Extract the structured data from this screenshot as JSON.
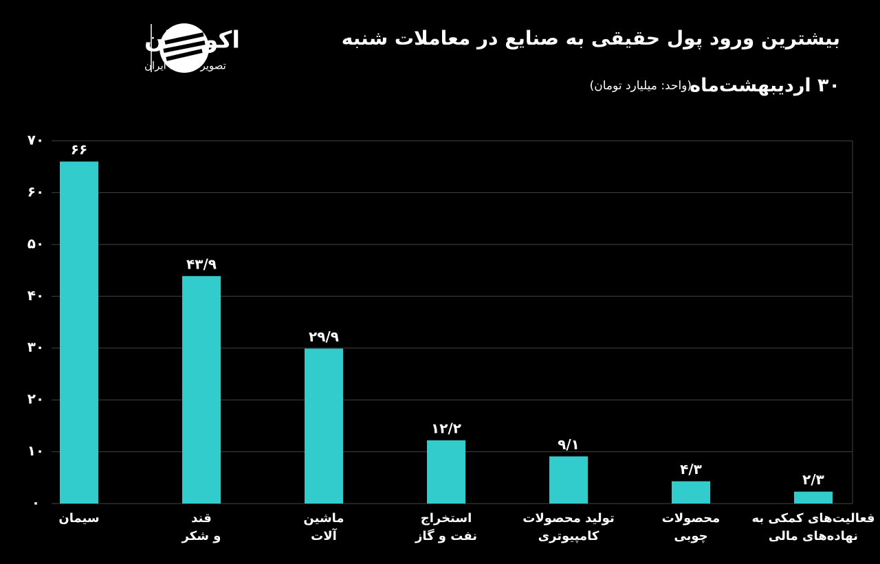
{
  "chart_data": {
    "type": "bar",
    "title": "بیشترین ورود پول حقیقی به صنایع در معاملات شنبه",
    "subtitle": "۳۰ اردیبهشت‌ماه",
    "unit": "(واحد: میلیارد تومان)",
    "logo": {
      "name": "اکوایران",
      "tagline": "تصویر اقتصاد ایران"
    },
    "categories": [
      "سیمان",
      "قند\nو شکر",
      "ماشین\nآلات",
      "استخراج\nنفت و گاز",
      "تولید محصولات\nکامپیوتری",
      "محصولات\nچوبی",
      "فعالیت‌های کمکی به\nنهاده‌های مالی"
    ],
    "values": [
      66,
      43.9,
      29.9,
      12.2,
      9.1,
      4.3,
      2.3
    ],
    "value_labels": [
      "۶۶",
      "۴۳/۹",
      "۲۹/۹",
      "۱۲/۲",
      "۹/۱",
      "۴/۳",
      "۲/۳"
    ],
    "color": "#33cccc",
    "ylim": [
      0,
      70
    ],
    "yticks": [
      {
        "value": 0,
        "label": "۰"
      },
      {
        "value": 10,
        "label": "۱۰"
      },
      {
        "value": 20,
        "label": "۲۰"
      },
      {
        "value": 30,
        "label": "۳۰"
      },
      {
        "value": 40,
        "label": "۴۰"
      },
      {
        "value": 50,
        "label": "۵۰"
      },
      {
        "value": 60,
        "label": "۶۰"
      },
      {
        "value": 70,
        "label": "۷۰"
      }
    ],
    "grid": true
  }
}
